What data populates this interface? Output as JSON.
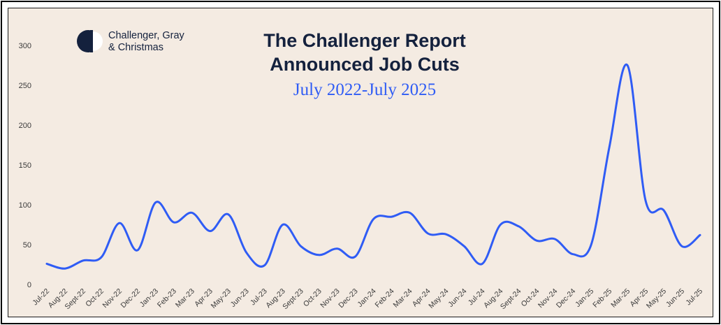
{
  "brand": {
    "line1": "Challenger, Gray",
    "line2": "& Christmas"
  },
  "colors": {
    "background": "#f4ebe2",
    "line": "#2f5cf5",
    "title": "#14213d",
    "subtitle": "#2f5cf5"
  },
  "chart_data": {
    "type": "line",
    "title": "The Challenger Report",
    "title_line2": "Announced Job Cuts",
    "subtitle": "July 2022-July 2025",
    "xlabel": "",
    "ylabel": "",
    "ylim": [
      0,
      300
    ],
    "yticks": [
      0,
      50,
      100,
      150,
      200,
      250,
      300
    ],
    "grid": false,
    "legend": "none",
    "categories": [
      "Jul-22",
      "Aug-22",
      "Sept-22",
      "Oct-22",
      "Nov-22",
      "Dec-22",
      "Jan-23",
      "Feb-23",
      "Mar-23",
      "Apr-23",
      "May-23",
      "Jun-23",
      "Jul-23",
      "Aug-23",
      "Sept-23",
      "Oct-23",
      "Nov-23",
      "Dec-23",
      "Jan-24",
      "Feb-24",
      "Mar-24",
      "Apr-24",
      "May-24",
      "Jun-24",
      "Jul-24",
      "Aug-24",
      "Sept-24",
      "Oct-24",
      "Nov-24",
      "Dec-24",
      "Jan-25",
      "Feb-25",
      "Mar-25",
      "Apr-25",
      "May-25",
      "Jun-25",
      "Jul-25"
    ],
    "series": [
      {
        "values": [
          26,
          20,
          30,
          34,
          77,
          43,
          103,
          78,
          90,
          67,
          88,
          40,
          24,
          75,
          48,
          37,
          45,
          35,
          82,
          85,
          90,
          64,
          63,
          48,
          26,
          75,
          73,
          55,
          57,
          38,
          50,
          172,
          275,
          105,
          93,
          48,
          62
        ]
      }
    ]
  }
}
